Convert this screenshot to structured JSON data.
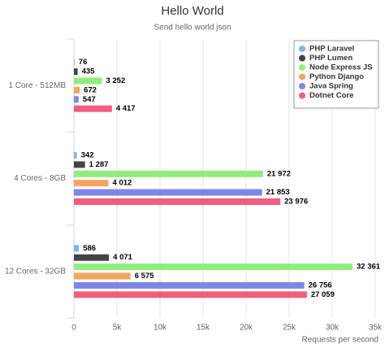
{
  "chart_data": {
    "type": "hbar",
    "title": "Hello World",
    "subtitle": "Send hello world json",
    "x_label": "Requests per second",
    "categories": [
      "1 Core - 512MB",
      "4 Cores - 8GB",
      "12 Cores - 32GB"
    ],
    "series": [
      {
        "name": "PHP Laravel",
        "color": "#7cb5ec",
        "values": [
          76,
          342,
          586
        ]
      },
      {
        "name": "PHP Lumen",
        "color": "#434348",
        "values": [
          435,
          1287,
          4071
        ],
        "value_labels": [
          "435",
          "1 287",
          "4 071"
        ]
      },
      {
        "name": "Node Express JS",
        "color": "#90ed7d",
        "values": [
          3252,
          21972,
          32361
        ],
        "value_labels": [
          "3 252",
          "21 972",
          "32 361"
        ]
      },
      {
        "name": "Python Django",
        "color": "#f7a35c",
        "values": [
          672,
          4012,
          6575
        ],
        "value_labels": [
          "672",
          "4 012",
          "6 575"
        ]
      },
      {
        "name": "Java Spring",
        "color": "#8085e9",
        "values": [
          547,
          21853,
          26756
        ],
        "value_labels": [
          "547",
          "21 853",
          "26 756"
        ]
      },
      {
        "name": "Dotnet Core",
        "color": "#f15c80",
        "values": [
          4417,
          23976,
          27059
        ],
        "value_labels": [
          "4 417",
          "23 976",
          "27 059"
        ]
      }
    ],
    "xlim": [
      0,
      35000
    ],
    "xticks": [
      0,
      {
        "value": 5000,
        "label": "5k"
      },
      {
        "value": 10000,
        "label": "10k"
      },
      {
        "value": 15000,
        "label": "15k"
      },
      {
        "value": 20000,
        "label": "20k"
      },
      {
        "value": 25000,
        "label": "25k"
      },
      {
        "value": 30000,
        "label": "30k"
      },
      {
        "value": 35000,
        "label": "35k"
      }
    ],
    "grid": true,
    "legend": "top-right"
  }
}
